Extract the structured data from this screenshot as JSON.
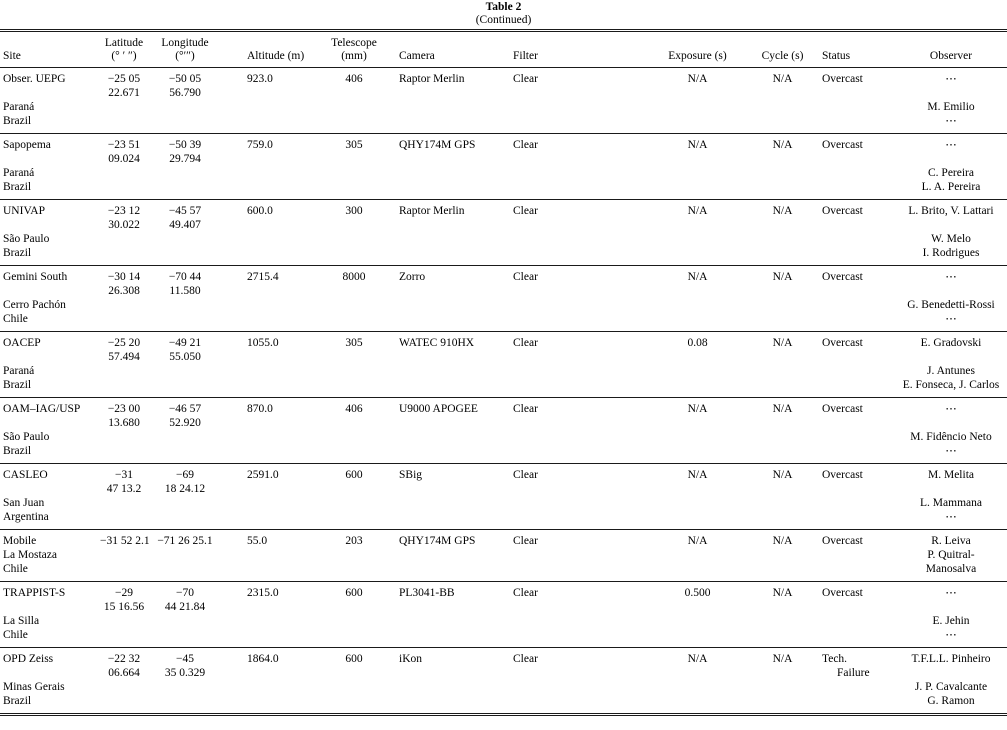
{
  "title": "Table 2",
  "subtitle": "(Continued)",
  "text_color": "#000000",
  "rule_color": "#1a1a1a",
  "table": {
    "columns": [
      {
        "label": "Site"
      },
      {
        "label": "Latitude",
        "sublabel": "(° ′ ″)"
      },
      {
        "label": "Longitude",
        "sublabel": "(°′″)"
      },
      {
        "label": "Altitude (m)"
      },
      {
        "label": "Telescope",
        "sublabel": "(mm)"
      },
      {
        "label": "Camera"
      },
      {
        "label": "Filter"
      },
      {
        "label": "Exposure (s)"
      },
      {
        "label": "Cycle (s)"
      },
      {
        "label": "Status"
      },
      {
        "label": "Observer"
      }
    ],
    "rows": [
      {
        "site": [
          "Obser. UEPG",
          "",
          "Paraná",
          "Brazil"
        ],
        "latitude": [
          "−25 05",
          "22.671"
        ],
        "longitude": [
          "−50 05",
          "56.790"
        ],
        "altitude": [
          "923.0"
        ],
        "telescope": [
          "406"
        ],
        "camera": [
          "Raptor Merlin"
        ],
        "filter": [
          "Clear"
        ],
        "exposure": [
          "N/A"
        ],
        "cycle": [
          "N/A"
        ],
        "status": [
          "Overcast"
        ],
        "observer": [
          "⋯",
          "",
          "M. Emilio",
          "⋯"
        ]
      },
      {
        "site": [
          "Sapopema",
          "",
          "Paraná",
          "Brazil"
        ],
        "latitude": [
          "−23 51",
          "09.024"
        ],
        "longitude": [
          "−50 39",
          "29.794"
        ],
        "altitude": [
          "759.0"
        ],
        "telescope": [
          "305"
        ],
        "camera": [
          "QHY174M GPS"
        ],
        "filter": [
          "Clear"
        ],
        "exposure": [
          "N/A"
        ],
        "cycle": [
          "N/A"
        ],
        "status": [
          "Overcast"
        ],
        "observer": [
          "⋯",
          "",
          "C. Pereira",
          "L. A. Pereira"
        ]
      },
      {
        "site": [
          "UNIVAP",
          "",
          "São Paulo",
          "Brazil"
        ],
        "latitude": [
          "−23 12",
          "30.022"
        ],
        "longitude": [
          "−45 57",
          "49.407"
        ],
        "altitude": [
          "600.0"
        ],
        "telescope": [
          "300"
        ],
        "camera": [
          "Raptor Merlin"
        ],
        "filter": [
          "Clear"
        ],
        "exposure": [
          "N/A"
        ],
        "cycle": [
          "N/A"
        ],
        "status": [
          "Overcast"
        ],
        "observer": [
          "L. Brito, V. Lattari",
          "",
          "W. Melo",
          "I. Rodrigues"
        ]
      },
      {
        "site": [
          "Gemini South",
          "",
          "Cerro Pachón",
          "Chile"
        ],
        "latitude": [
          "−30 14",
          "26.308"
        ],
        "longitude": [
          "−70 44",
          "11.580"
        ],
        "altitude": [
          "2715.4"
        ],
        "telescope": [
          "8000"
        ],
        "camera": [
          "Zorro"
        ],
        "filter": [
          "Clear"
        ],
        "exposure": [
          "N/A"
        ],
        "cycle": [
          "N/A"
        ],
        "status": [
          "Overcast"
        ],
        "observer": [
          "⋯",
          "",
          "G. Benedetti-Rossi",
          "⋯"
        ]
      },
      {
        "site": [
          "OACEP",
          "",
          "Paraná",
          "Brazil"
        ],
        "latitude": [
          "−25 20",
          "57.494"
        ],
        "longitude": [
          "−49 21",
          "55.050"
        ],
        "altitude": [
          "1055.0"
        ],
        "telescope": [
          "305"
        ],
        "camera": [
          "WATEC 910HX"
        ],
        "filter": [
          "Clear"
        ],
        "exposure": [
          "0.08"
        ],
        "cycle": [
          "N/A"
        ],
        "status": [
          "Overcast"
        ],
        "observer": [
          "E. Gradovski",
          "",
          "J. Antunes",
          "E. Fonseca, J. Carlos"
        ]
      },
      {
        "site": [
          "OAM–IAG/USP",
          "",
          "São Paulo",
          "Brazil"
        ],
        "latitude": [
          "−23 00",
          "13.680"
        ],
        "longitude": [
          "−46 57",
          "52.920"
        ],
        "altitude": [
          "870.0"
        ],
        "telescope": [
          "406"
        ],
        "camera": [
          "U9000 APOGEE"
        ],
        "filter": [
          "Clear"
        ],
        "exposure": [
          "N/A"
        ],
        "cycle": [
          "N/A"
        ],
        "status": [
          "Overcast"
        ],
        "observer": [
          "⋯",
          "",
          "M. Fidêncio Neto",
          "⋯"
        ]
      },
      {
        "site": [
          "CASLEO",
          "",
          "San Juan",
          "Argentina"
        ],
        "latitude": [
          "−31",
          "47 13.2"
        ],
        "longitude": [
          "−69",
          "18 24.12"
        ],
        "altitude": [
          "2591.0"
        ],
        "telescope": [
          "600"
        ],
        "camera": [
          "SBig"
        ],
        "filter": [
          "Clear"
        ],
        "exposure": [
          "N/A"
        ],
        "cycle": [
          "N/A"
        ],
        "status": [
          "Overcast"
        ],
        "observer": [
          "M. Melita",
          "",
          "L. Mammana",
          "⋯"
        ]
      },
      {
        "site": [
          "Mobile",
          "La Mostaza",
          "Chile"
        ],
        "latitude": [
          "−31 52 2.1"
        ],
        "longitude": [
          "−71 26 25.1"
        ],
        "altitude": [
          "55.0"
        ],
        "telescope": [
          "203"
        ],
        "camera": [
          "QHY174M GPS"
        ],
        "filter": [
          "Clear"
        ],
        "exposure": [
          "N/A"
        ],
        "cycle": [
          "N/A"
        ],
        "status": [
          "Overcast"
        ],
        "observer": [
          "R. Leiva",
          "P. Quitral-",
          "Manosalva"
        ]
      },
      {
        "site": [
          "TRAPPIST-S",
          "",
          "La Silla",
          "Chile"
        ],
        "latitude": [
          "−29",
          "15 16.56"
        ],
        "longitude": [
          "−70",
          "44 21.84"
        ],
        "altitude": [
          "2315.0"
        ],
        "telescope": [
          "600"
        ],
        "camera": [
          "PL3041-BB"
        ],
        "filter": [
          "Clear"
        ],
        "exposure": [
          "0.500"
        ],
        "cycle": [
          "N/A"
        ],
        "status": [
          "Overcast"
        ],
        "observer": [
          "⋯",
          "",
          "E. Jehin",
          "⋯"
        ]
      },
      {
        "site": [
          "OPD Zeiss",
          "",
          "Minas Gerais",
          "Brazil"
        ],
        "latitude": [
          "−22 32",
          "06.664"
        ],
        "longitude": [
          "−45",
          "35 0.329"
        ],
        "altitude": [
          "1864.0"
        ],
        "telescope": [
          "600"
        ],
        "camera": [
          "iKon"
        ],
        "filter": [
          "Clear"
        ],
        "exposure": [
          "N/A"
        ],
        "cycle": [
          "N/A"
        ],
        "status": [
          "Tech.",
          "Failure"
        ],
        "observer": [
          "T.F.L.L. Pinheiro",
          "",
          "J. P. Cavalcante",
          "G. Ramon"
        ]
      }
    ]
  }
}
